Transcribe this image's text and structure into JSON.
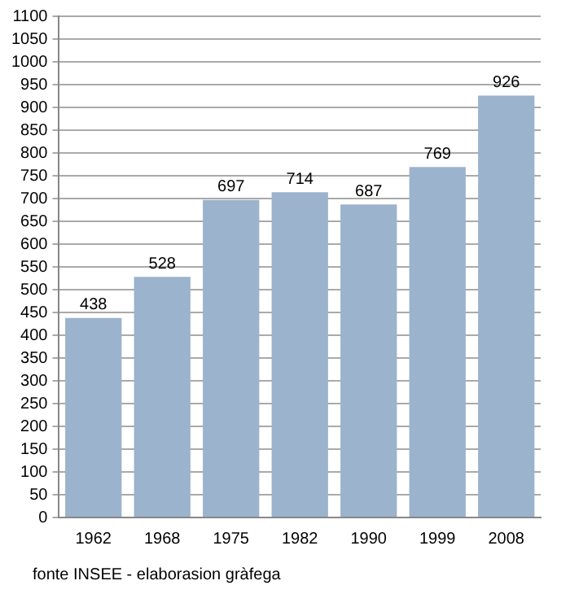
{
  "chart_data": {
    "type": "bar",
    "categories": [
      "1962",
      "1968",
      "1975",
      "1982",
      "1990",
      "1999",
      "2008"
    ],
    "values": [
      438,
      528,
      697,
      714,
      687,
      769,
      926
    ],
    "color": "#9bb3cc",
    "ylim": [
      0,
      1100
    ],
    "yticks": [
      0,
      50,
      100,
      150,
      200,
      250,
      300,
      350,
      400,
      450,
      500,
      550,
      600,
      650,
      700,
      750,
      800,
      850,
      900,
      950,
      1000,
      1050,
      1100
    ],
    "grid": "y",
    "data_labels": true,
    "annotations": [
      "fonte INSEE - elaborasion gràfega"
    ]
  }
}
